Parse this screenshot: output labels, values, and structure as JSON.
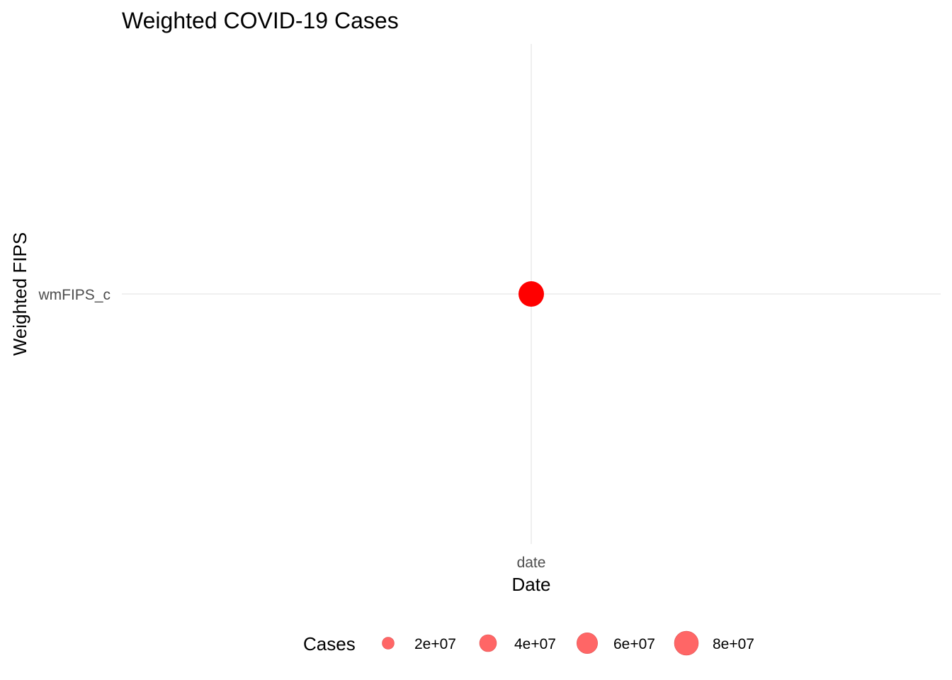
{
  "chart_data": {
    "type": "scatter",
    "title": "Weighted COVID-19 Cases",
    "xlabel": "Date",
    "ylabel": "Weighted FIPS",
    "x_categories": [
      "date"
    ],
    "y_categories": [
      "wmFIPS_c"
    ],
    "points": [
      {
        "x": "date",
        "y": "wmFIPS_c",
        "cases": 90000000
      }
    ],
    "point_color": "#ff0000",
    "grid": true,
    "legend": {
      "title": "Cases",
      "position": "bottom",
      "color": "#ff6666",
      "entries": [
        {
          "label": "2e+07",
          "value": 20000000
        },
        {
          "label": "4e+07",
          "value": 40000000
        },
        {
          "label": "6e+07",
          "value": 60000000
        },
        {
          "label": "8e+07",
          "value": 80000000
        }
      ]
    }
  }
}
